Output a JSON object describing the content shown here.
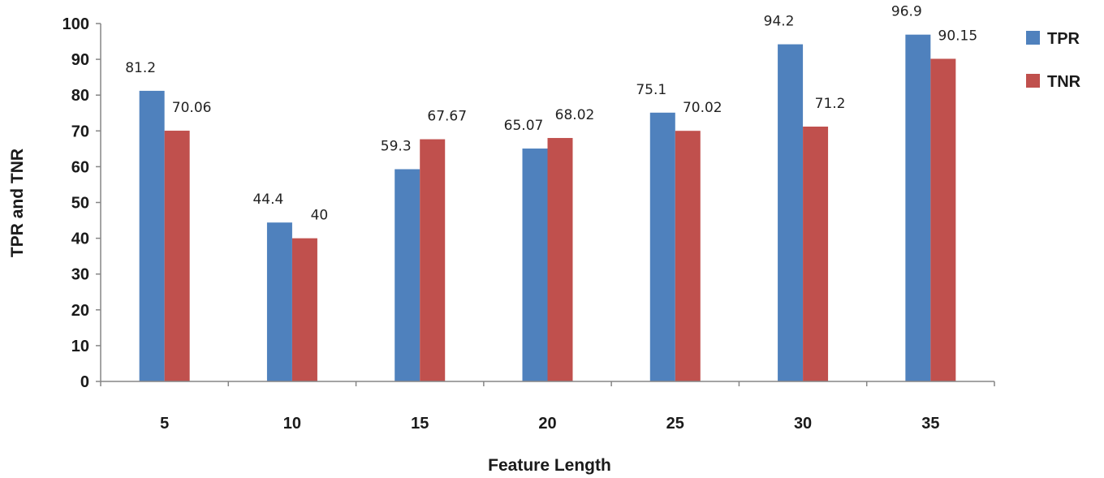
{
  "chart_data": {
    "type": "bar",
    "categories": [
      "5",
      "10",
      "15",
      "20",
      "25",
      "30",
      "35"
    ],
    "series": [
      {
        "name": "TPR",
        "values": [
          81.2,
          44.4,
          59.3,
          65.07,
          75.1,
          94.2,
          96.9
        ],
        "labels": [
          "81.2",
          "44.4",
          "59.3",
          "65.07",
          "75.1",
          "94.2",
          "96.9"
        ],
        "color": "#4f81bd"
      },
      {
        "name": "TNR",
        "values": [
          70.06,
          40,
          67.67,
          68.02,
          70.02,
          71.2,
          90.15
        ],
        "labels": [
          "70.06",
          "40",
          "67.67",
          "68.02",
          "70.02",
          "71.2",
          "90.15"
        ],
        "color": "#c0504d"
      }
    ],
    "xlabel": "Feature Length",
    "ylabel": "TPR and TNR",
    "ylim": [
      0,
      100
    ],
    "yticks": [
      "0",
      "10",
      "20",
      "30",
      "40",
      "50",
      "60",
      "70",
      "80",
      "90",
      "100"
    ],
    "grid": false,
    "legend_position": "top-right"
  }
}
